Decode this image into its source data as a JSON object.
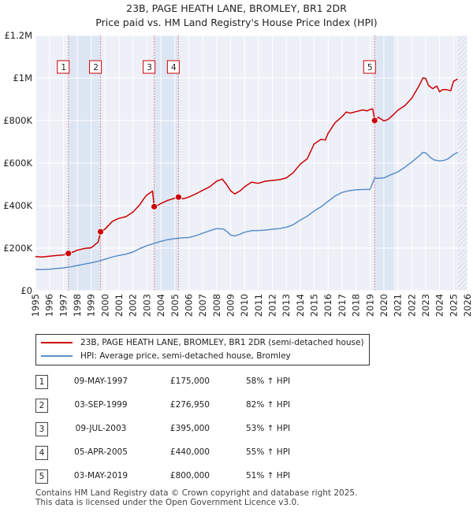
{
  "chart_data": {
    "type": "line",
    "title": "23B, PAGE HEATH LANE, BROMLEY, BR1 2DR",
    "subtitle": "Price paid vs. HM Land Registry's House Price Index (HPI)",
    "xlabel": "",
    "ylabel": "",
    "xlim": [
      1995,
      2026
    ],
    "ylim": [
      0,
      1200000
    ],
    "x_ticks": [
      1995,
      1996,
      1997,
      1998,
      1999,
      2000,
      2001,
      2002,
      2003,
      2004,
      2005,
      2006,
      2007,
      2008,
      2009,
      2010,
      2011,
      2012,
      2013,
      2014,
      2015,
      2016,
      2017,
      2018,
      2019,
      2020,
      2021,
      2022,
      2023,
      2024,
      2025,
      2026
    ],
    "y_ticks": [
      {
        "value": 0,
        "label": "£0"
      },
      {
        "value": 200000,
        "label": "£200K"
      },
      {
        "value": 400000,
        "label": "£400K"
      },
      {
        "value": 600000,
        "label": "£600K"
      },
      {
        "value": 800000,
        "label": "£800K"
      },
      {
        "value": 1000000,
        "label": "£1M"
      },
      {
        "value": 1200000,
        "label": "£1.2M"
      }
    ],
    "grid": true,
    "colors": {
      "property": "#cc0000",
      "hpi": "#5b8fc9",
      "shade": "#dde6f3",
      "vline": "#e07070",
      "grid": "#ffffff",
      "background": "#eef0f8"
    },
    "series": [
      {
        "name": "23B, PAGE HEATH LANE, BROMLEY, BR1 2DR (semi-detached house)",
        "color": "#cc0000",
        "points": [
          [
            1995.0,
            160000
          ],
          [
            1995.5,
            158000
          ],
          [
            1996.0,
            162000
          ],
          [
            1996.5,
            165000
          ],
          [
            1997.0,
            168000
          ],
          [
            1997.36,
            175000
          ],
          [
            1997.7,
            182000
          ],
          [
            1998.0,
            190000
          ],
          [
            1998.5,
            198000
          ],
          [
            1999.0,
            202000
          ],
          [
            1999.5,
            228000
          ],
          [
            1999.67,
            276950
          ],
          [
            2000.0,
            290000
          ],
          [
            2000.5,
            325000
          ],
          [
            2000.8,
            335000
          ],
          [
            2001.0,
            340000
          ],
          [
            2001.5,
            348000
          ],
          [
            2002.0,
            370000
          ],
          [
            2002.5,
            405000
          ],
          [
            2002.8,
            435000
          ],
          [
            2003.0,
            450000
          ],
          [
            2003.4,
            468000
          ],
          [
            2003.52,
            395000
          ],
          [
            2003.8,
            402000
          ],
          [
            2004.0,
            410000
          ],
          [
            2004.5,
            425000
          ],
          [
            2005.0,
            435000
          ],
          [
            2005.26,
            440000
          ],
          [
            2005.6,
            432000
          ],
          [
            2006.0,
            440000
          ],
          [
            2006.5,
            455000
          ],
          [
            2007.0,
            472000
          ],
          [
            2007.5,
            488000
          ],
          [
            2008.0,
            515000
          ],
          [
            2008.4,
            525000
          ],
          [
            2008.7,
            500000
          ],
          [
            2009.0,
            470000
          ],
          [
            2009.3,
            455000
          ],
          [
            2009.7,
            470000
          ],
          [
            2010.0,
            488000
          ],
          [
            2010.5,
            510000
          ],
          [
            2011.0,
            505000
          ],
          [
            2011.5,
            515000
          ],
          [
            2012.0,
            518000
          ],
          [
            2012.5,
            522000
          ],
          [
            2013.0,
            530000
          ],
          [
            2013.5,
            555000
          ],
          [
            2014.0,
            595000
          ],
          [
            2014.5,
            620000
          ],
          [
            2015.0,
            690000
          ],
          [
            2015.5,
            712000
          ],
          [
            2015.8,
            708000
          ],
          [
            2016.0,
            740000
          ],
          [
            2016.5,
            790000
          ],
          [
            2017.0,
            818000
          ],
          [
            2017.3,
            840000
          ],
          [
            2017.6,
            835000
          ],
          [
            2018.0,
            842000
          ],
          [
            2018.5,
            850000
          ],
          [
            2018.8,
            845000
          ],
          [
            2019.0,
            852000
          ],
          [
            2019.2,
            855000
          ],
          [
            2019.34,
            800000
          ],
          [
            2019.6,
            815000
          ],
          [
            2020.0,
            798000
          ],
          [
            2020.3,
            805000
          ],
          [
            2020.7,
            828000
          ],
          [
            2021.0,
            848000
          ],
          [
            2021.5,
            870000
          ],
          [
            2022.0,
            905000
          ],
          [
            2022.5,
            960000
          ],
          [
            2022.8,
            1000000
          ],
          [
            2023.0,
            998000
          ],
          [
            2023.2,
            965000
          ],
          [
            2023.5,
            950000
          ],
          [
            2023.8,
            962000
          ],
          [
            2024.0,
            935000
          ],
          [
            2024.2,
            945000
          ],
          [
            2024.5,
            945000
          ],
          [
            2024.8,
            940000
          ],
          [
            2025.0,
            985000
          ],
          [
            2025.3,
            995000
          ]
        ]
      },
      {
        "name": "HPI: Average price, semi-detached house, Bromley",
        "color": "#5b8fc9",
        "points": [
          [
            1995.0,
            100000
          ],
          [
            1995.5,
            99000
          ],
          [
            1996.0,
            101000
          ],
          [
            1996.5,
            104000
          ],
          [
            1997.0,
            107000
          ],
          [
            1997.5,
            112000
          ],
          [
            1998.0,
            118000
          ],
          [
            1998.5,
            125000
          ],
          [
            1999.0,
            131000
          ],
          [
            1999.5,
            138000
          ],
          [
            2000.0,
            148000
          ],
          [
            2000.5,
            158000
          ],
          [
            2001.0,
            166000
          ],
          [
            2001.5,
            172000
          ],
          [
            2002.0,
            182000
          ],
          [
            2002.5,
            198000
          ],
          [
            2003.0,
            212000
          ],
          [
            2003.5,
            222000
          ],
          [
            2004.0,
            232000
          ],
          [
            2004.5,
            240000
          ],
          [
            2005.0,
            245000
          ],
          [
            2005.5,
            248000
          ],
          [
            2006.0,
            250000
          ],
          [
            2006.5,
            258000
          ],
          [
            2007.0,
            270000
          ],
          [
            2007.5,
            282000
          ],
          [
            2008.0,
            292000
          ],
          [
            2008.5,
            290000
          ],
          [
            2008.8,
            275000
          ],
          [
            2009.0,
            262000
          ],
          [
            2009.3,
            257000
          ],
          [
            2009.7,
            266000
          ],
          [
            2010.0,
            275000
          ],
          [
            2010.5,
            282000
          ],
          [
            2011.0,
            283000
          ],
          [
            2011.5,
            285000
          ],
          [
            2012.0,
            289000
          ],
          [
            2012.5,
            292000
          ],
          [
            2013.0,
            298000
          ],
          [
            2013.5,
            310000
          ],
          [
            2014.0,
            332000
          ],
          [
            2014.5,
            350000
          ],
          [
            2015.0,
            375000
          ],
          [
            2015.5,
            395000
          ],
          [
            2016.0,
            420000
          ],
          [
            2016.5,
            445000
          ],
          [
            2017.0,
            462000
          ],
          [
            2017.5,
            470000
          ],
          [
            2018.0,
            474000
          ],
          [
            2018.5,
            476000
          ],
          [
            2019.0,
            476000
          ],
          [
            2019.34,
            530000
          ],
          [
            2019.5,
            528000
          ],
          [
            2020.0,
            530000
          ],
          [
            2020.5,
            545000
          ],
          [
            2021.0,
            558000
          ],
          [
            2021.5,
            580000
          ],
          [
            2022.0,
            605000
          ],
          [
            2022.5,
            632000
          ],
          [
            2022.8,
            650000
          ],
          [
            2023.0,
            648000
          ],
          [
            2023.3,
            628000
          ],
          [
            2023.6,
            615000
          ],
          [
            2024.0,
            610000
          ],
          [
            2024.3,
            612000
          ],
          [
            2024.6,
            620000
          ],
          [
            2025.0,
            640000
          ],
          [
            2025.3,
            650000
          ]
        ]
      }
    ],
    "sales": [
      {
        "n": "1",
        "x": 1997.36,
        "date": "09-MAY-1997",
        "price": "£175,000",
        "price_value": 175000,
        "hpi": "58% ↑ HPI"
      },
      {
        "n": "2",
        "x": 1999.67,
        "date": "03-SEP-1999",
        "price": "£276,950",
        "price_value": 276950,
        "hpi": "82% ↑ HPI"
      },
      {
        "n": "3",
        "x": 2003.52,
        "date": "09-JUL-2003",
        "price": "£395,000",
        "price_value": 395000,
        "hpi": "53% ↑ HPI"
      },
      {
        "n": "4",
        "x": 2005.26,
        "date": "05-APR-2005",
        "price": "£440,000",
        "price_value": 440000,
        "hpi": "55% ↑ HPI"
      },
      {
        "n": "5",
        "x": 2019.34,
        "date": "03-MAY-2019",
        "price": "£800,000",
        "price_value": 800000,
        "hpi": "51% ↑ HPI"
      }
    ],
    "shaded_ranges": [
      [
        1997.36,
        1999.67
      ],
      [
        2003.52,
        2005.26
      ],
      [
        2019.34,
        2020.7
      ]
    ],
    "forecast_from": 2025.3,
    "legend_position": "below"
  },
  "legend": {
    "property_label": "23B, PAGE HEATH LANE, BROMLEY, BR1 2DR (semi-detached house)",
    "hpi_label": "HPI: Average price, semi-detached house, Bromley"
  },
  "footer": {
    "line1": "Contains HM Land Registry data © Crown copyright and database right 2025.",
    "line2": "This data is licensed under the Open Government Licence v3.0."
  }
}
